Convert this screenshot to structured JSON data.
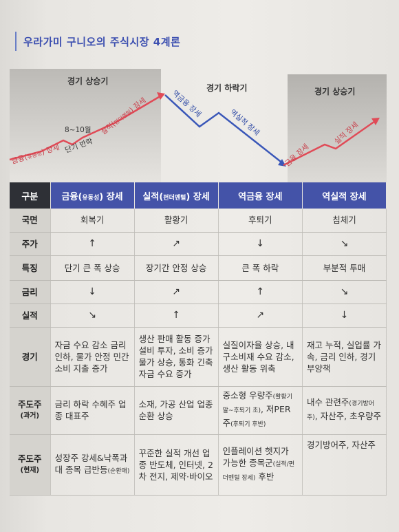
{
  "title": "우라가미 구니오의 주식시장 4계론",
  "diagram": {
    "stage_labels": [
      "경기 상승기",
      "경기 하락기",
      "경기 상승기"
    ],
    "curve_labels": {
      "finance_prefix": "금융(",
      "finance_sub": "유동성",
      "finance_suffix": ") 장세",
      "time_note": "8~10월",
      "short_rebound": "단기 반락",
      "earnings_prefix": "실적(",
      "earnings_sub": "펀더멘털",
      "earnings_suffix": ") 장세",
      "reverse_finance": "역금융 장세",
      "reverse_earnings": "역실적 장세",
      "finance2": "금융 장세",
      "earnings2": "실적 장세"
    },
    "colors": {
      "up_arrow": "#e04b57",
      "down_arrow": "#3a57b8"
    }
  },
  "table": {
    "header_first": "구분",
    "columns": [
      {
        "prefix": "금융(",
        "sub": "유동성",
        "suffix": ") 장세"
      },
      {
        "prefix": "실적(",
        "sub": "펀더멘털",
        "suffix": ") 장세"
      },
      {
        "prefix": "역금융 장세",
        "sub": "",
        "suffix": ""
      },
      {
        "prefix": "역실적 장세",
        "sub": "",
        "suffix": ""
      }
    ],
    "rows": {
      "phase": {
        "label": "국면",
        "cells": [
          "회복기",
          "활황기",
          "후퇴기",
          "침체기"
        ]
      },
      "price": {
        "label": "주가",
        "cells": [
          "↑",
          "↗",
          "↓",
          "↘"
        ]
      },
      "feature": {
        "label": "특징",
        "cells": [
          "단기 큰 폭 상승",
          "장기간 안정 상승",
          "큰 폭 하락",
          "부분적 투매"
        ]
      },
      "rate": {
        "label": "금리",
        "cells": [
          "↓",
          "↗",
          "↑",
          "↘"
        ]
      },
      "earnings": {
        "label": "실적",
        "cells": [
          "↘",
          "↑",
          "↗",
          "↓"
        ]
      },
      "economy": {
        "label": "경기",
        "cells": [
          "자금 수요 감소 금리 인하, 물가 안정 민간 소비 지출 증가",
          "생산 판매 활동 증가 설비 투자, 소비 증가 물가 상승, 통화 긴축 자금 수요 증가",
          "실질이자율 상승, 내구소비재 수요 감소, 생산 활동 위축",
          "재고 누적, 실업률 가속, 금리 인하, 경기 부양책"
        ]
      },
      "lead_past": {
        "label": "주도주",
        "label_sub": "(과거)",
        "cells": [
          {
            "main": "금리 하락 수혜주 업종 대표주",
            "sub": ""
          },
          {
            "main": "소재, 가공 산업 업종 순환 상승",
            "sub": ""
          },
          {
            "main": "중소형 우량주",
            "sub": "(활황기 말~후퇴기 초)",
            "main2": ", 저PER주",
            "sub2": "(후퇴기 후반)"
          },
          {
            "main": "내수 관련주",
            "sub": "(경기방어주)",
            "main2": ", 자산주, 초우량주",
            "sub2": ""
          }
        ]
      },
      "lead_now": {
        "label": "주도주",
        "label_sub": "(현재)",
        "cells": [
          {
            "main": "성장주 강세&낙폭과대 종목 급반등",
            "sub": "(순환매)"
          },
          {
            "main": "꾸준한 실적 개선 업종 반도체, 인터넷, 2차 전지, 제약·바이오",
            "sub": ""
          },
          {
            "main": "인플레이션 헷지가 가능한 종목군",
            "sub": "(실적/펀더멘털 장세)",
            "main2": " 후반",
            "sub2": ""
          },
          {
            "main": "경기방어주, 자산주",
            "sub": ""
          }
        ]
      }
    }
  }
}
